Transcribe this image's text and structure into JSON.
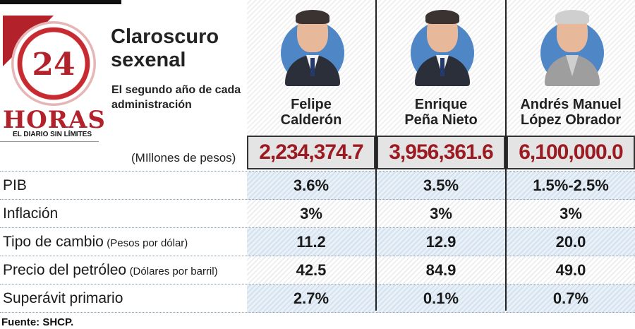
{
  "brand": {
    "number": "24",
    "name": "HORAS",
    "tagline": "EL DIARIO SIN LÍMITES"
  },
  "title": "Claroscuro sexenal",
  "subtitle": "El segundo año de cada administración",
  "chart_data": {
    "type": "table",
    "columns": [
      {
        "name": "Felipe Calderón",
        "line1": "Felipe",
        "line2": "Calderón"
      },
      {
        "name": "Enrique Peña Nieto",
        "line1": "Enrique",
        "line2": "Peña Nieto"
      },
      {
        "name": "Andrés Manuel López Obrador",
        "line1": "Andrés Manuel",
        "line2": "López Obrador"
      }
    ],
    "totals": {
      "label": "(MIllones de pesos)",
      "values": [
        "2,234,374.7",
        "3,956,361.6",
        "6,100,000.0"
      ]
    },
    "rows": [
      {
        "label": "PIB",
        "unit": "",
        "values": [
          "3.6%",
          "3.5%",
          "1.5%-2.5%"
        ]
      },
      {
        "label": "Inflación",
        "unit": "",
        "values": [
          "3%",
          "3%",
          "3%"
        ]
      },
      {
        "label": "Tipo de cambio",
        "unit": "(Pesos por dólar)",
        "values": [
          "11.2",
          "12.9",
          "20.0"
        ]
      },
      {
        "label": "Precio del petróleo",
        "unit": "(Dólares por barril)",
        "values": [
          "42.5",
          "84.9",
          "49.0"
        ]
      },
      {
        "label": "Superávit primario",
        "unit": "",
        "values": [
          "2.7%",
          "0.1%",
          "0.7%"
        ]
      }
    ]
  },
  "source": "Fuente: SHCP."
}
